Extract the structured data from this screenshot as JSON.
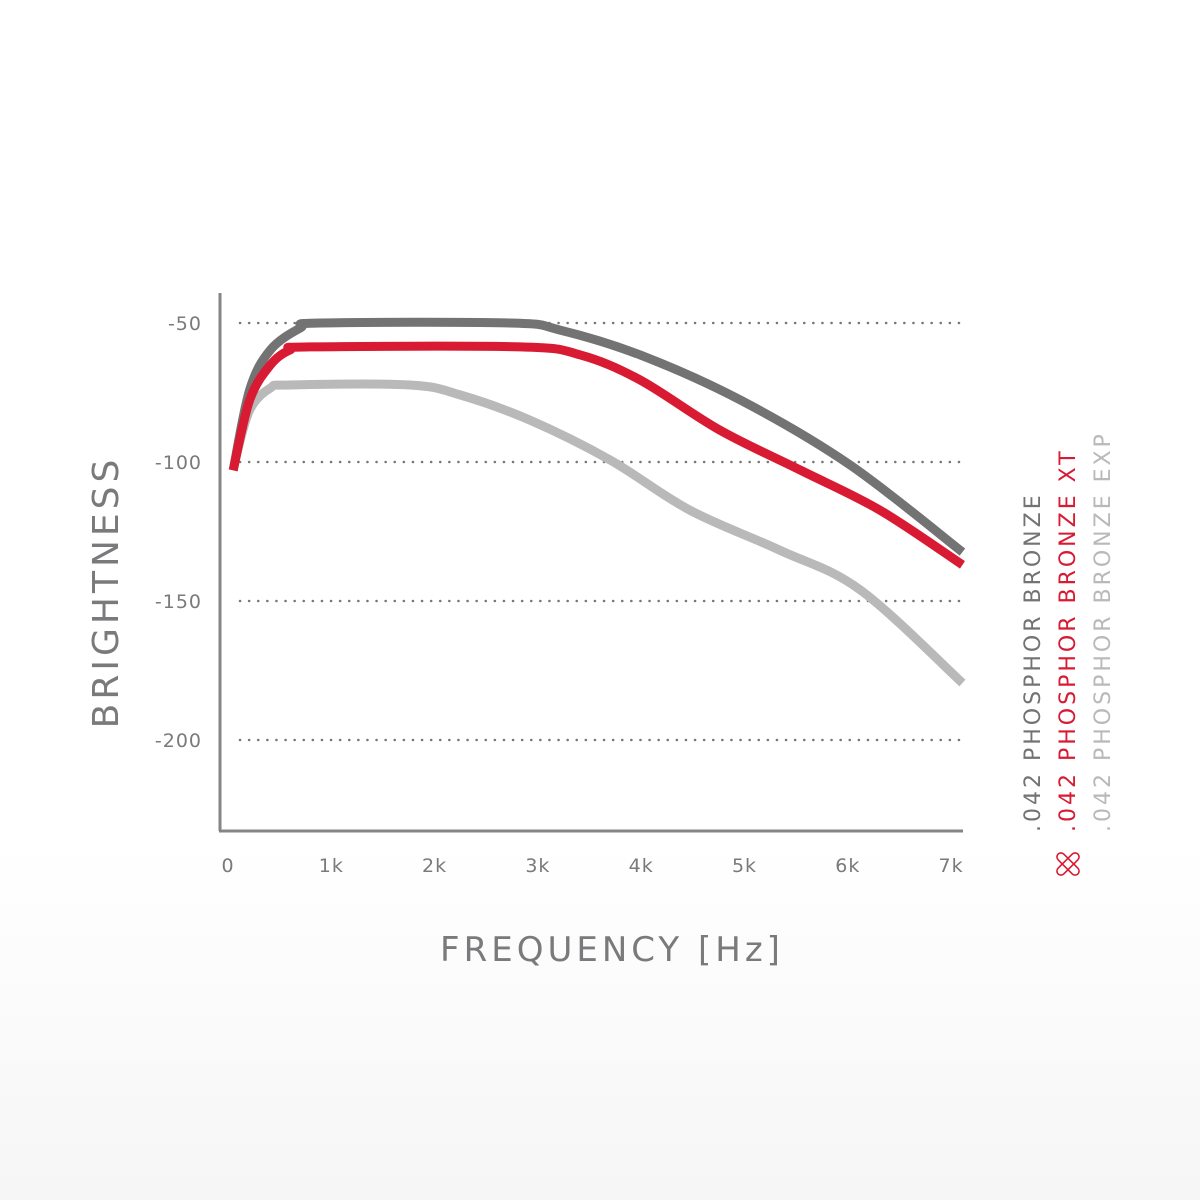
{
  "chart_data": {
    "type": "line",
    "title": "",
    "xlabel": "FREQUENCY [Hz]",
    "ylabel": "BRIGHTNESS",
    "xlim": [
      -0.08,
      7.1
    ],
    "ylim": [
      -233,
      -39
    ],
    "x_ticks": [
      0,
      1,
      2,
      3,
      4,
      5,
      6,
      7
    ],
    "x_tick_labels": [
      "0",
      "1k",
      "2k",
      "3k",
      "4k",
      "5k",
      "6k",
      "7k"
    ],
    "y_ticks": [
      -50,
      -100,
      -150,
      -200
    ],
    "y_tick_labels": [
      "-50",
      "-100",
      "-150",
      "-200"
    ],
    "grid": "horizontal dotted",
    "legend_placement": "right, vertical",
    "series": [
      {
        "name": ".042 PHOSPHOR BRONZE",
        "color": "#737373",
        "x": [
          0.05,
          0.21,
          0.41,
          0.7,
          0.89,
          2.73,
          3.21,
          3.99,
          4.96,
          6.02,
          7.11
        ],
        "y": [
          -103,
          -74,
          -59.7,
          -51.8,
          -50,
          -50,
          -52.5,
          -61.5,
          -77.7,
          -101,
          -132.4
        ]
      },
      {
        "name": ".042 PHOSPHOR BRONZE XT",
        "color": "#d81a32",
        "x": [
          0.05,
          0.21,
          0.41,
          0.6,
          0.79,
          2.83,
          3.41,
          3.99,
          4.76,
          5.54,
          6.31,
          7.11
        ],
        "y": [
          -103,
          -77.7,
          -65.1,
          -59.7,
          -58.6,
          -58.6,
          -61.5,
          -70.5,
          -88.5,
          -102.9,
          -117.3,
          -137
        ]
      },
      {
        "name": ".042 PHOSPHOR BRONZE EXP",
        "color": "#b9b9b9",
        "x": [
          0.07,
          0.21,
          0.41,
          0.6,
          1.76,
          2.25,
          2.92,
          3.7,
          4.47,
          5.34,
          6.12,
          7.11
        ],
        "y": [
          -99.3,
          -81.3,
          -73.4,
          -72.3,
          -72.3,
          -75.9,
          -84.9,
          -99.3,
          -117.3,
          -131.7,
          -146,
          -179.5
        ]
      }
    ]
  }
}
